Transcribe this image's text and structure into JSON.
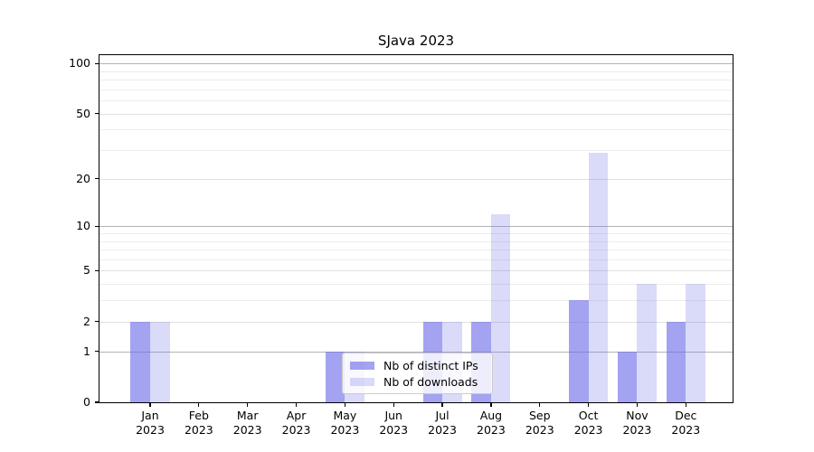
{
  "chart_data": {
    "type": "bar",
    "title": "SJava 2023",
    "categories": [
      "Jan",
      "Feb",
      "Mar",
      "Apr",
      "May",
      "Jun",
      "Jul",
      "Aug",
      "Sep",
      "Oct",
      "Nov",
      "Dec"
    ],
    "category_year": "2023",
    "series": [
      {
        "name": "Nb of distinct IPs",
        "color": "rgba(107,107,233,0.62)",
        "values": [
          2,
          0,
          0,
          0,
          1,
          0,
          2,
          2,
          0,
          3,
          1,
          2
        ]
      },
      {
        "name": "Nb of downloads",
        "color": "rgba(107,107,233,0.25)",
        "values": [
          2,
          0,
          0,
          0,
          1,
          0,
          2,
          12,
          0,
          29,
          4,
          4
        ]
      }
    ],
    "yscale": "log10(1+y)",
    "ylim": [
      0,
      112
    ],
    "yticks_major": [
      0,
      1,
      2,
      5,
      10,
      20,
      50,
      100
    ],
    "yticks_emphasized": [
      1,
      10,
      100
    ],
    "yticks_minor": [
      3,
      4,
      6,
      7,
      8,
      9,
      30,
      40,
      60,
      70,
      80,
      90
    ],
    "grid": "horizontal",
    "legend_position": "lower-center",
    "colors": {
      "grid_minor": "#ececec",
      "grid_major": "#e0e0e0",
      "grid_emphasized": "#b3b3b8",
      "spine": "#000000",
      "background": "#ffffff"
    }
  }
}
